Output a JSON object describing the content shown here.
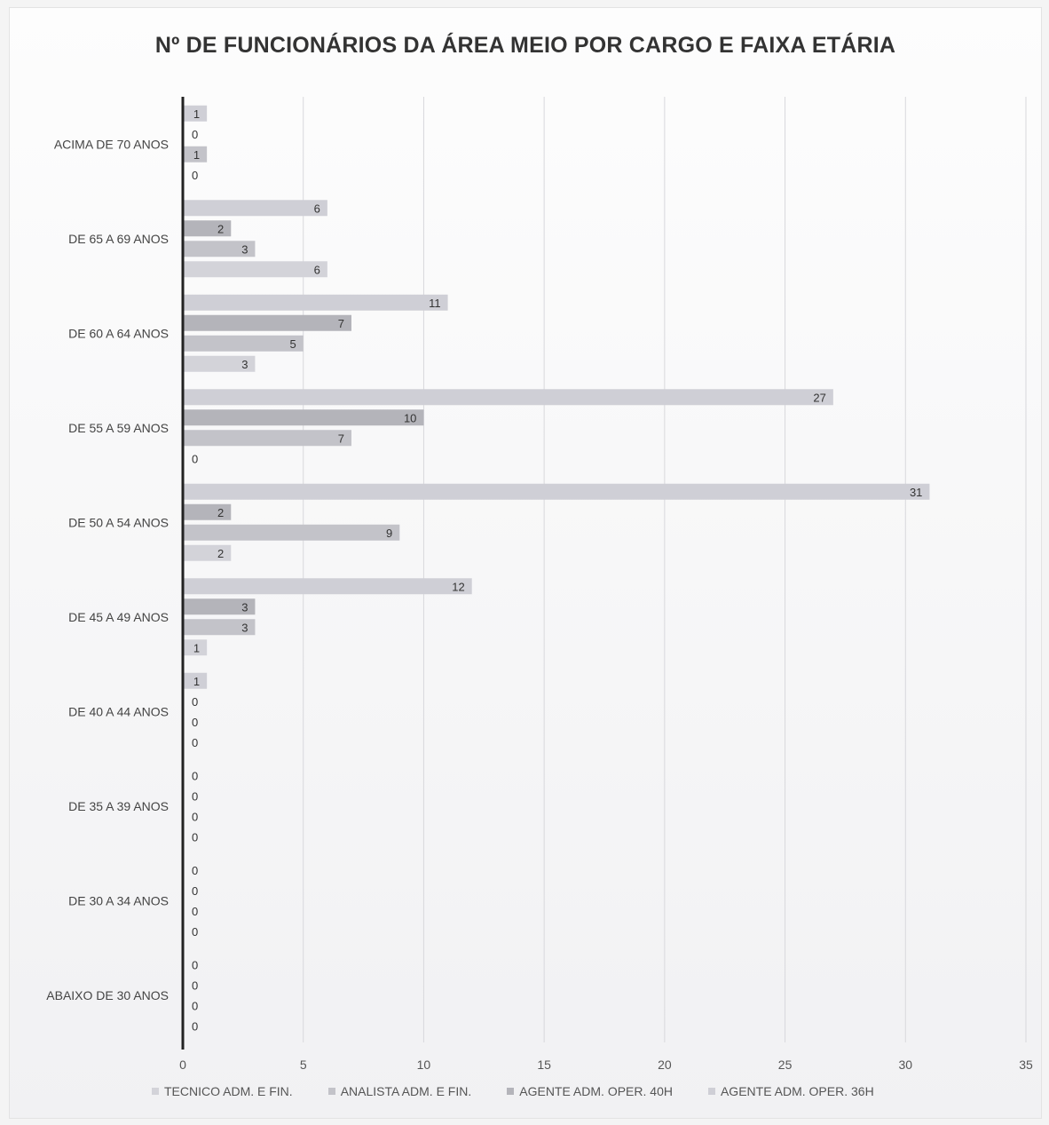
{
  "chart_data": {
    "type": "bar",
    "orientation": "horizontal",
    "title": "Nº DE FUNCIONÁRIOS DA ÁREA MEIO POR CARGO E FAIXA ETÁRIA",
    "categories": [
      "ACIMA DE 70 ANOS",
      "DE 65 A 69 ANOS",
      "DE 60 A 64 ANOS",
      "DE 55 A 59 ANOS",
      "DE 50 A 54 ANOS",
      "DE 45 A 49 ANOS",
      "DE 40 A 44 ANOS",
      "DE 35 A 39 ANOS",
      "DE 30 A 34 ANOS",
      "ABAIXO DE 30 ANOS"
    ],
    "series": [
      {
        "name": "AGENTE ADM. OPER. 36H",
        "color": "#cfcfd6",
        "values": [
          1,
          6,
          11,
          27,
          31,
          12,
          1,
          0,
          0,
          0
        ]
      },
      {
        "name": "AGENTE ADM. OPER. 40H",
        "color": "#b4b4ba",
        "values": [
          0,
          2,
          7,
          10,
          2,
          3,
          0,
          0,
          0,
          0
        ]
      },
      {
        "name": "ANALISTA ADM. E FIN.",
        "color": "#c3c3c9",
        "values": [
          1,
          3,
          5,
          7,
          9,
          3,
          0,
          0,
          0,
          0
        ]
      },
      {
        "name": "TECNICO ADM. E FIN.",
        "color": "#d3d3d9",
        "values": [
          0,
          6,
          3,
          0,
          2,
          1,
          0,
          0,
          0,
          0
        ]
      }
    ],
    "xlim": [
      0,
      35
    ],
    "xticks": [
      0,
      5,
      10,
      15,
      20,
      25,
      30,
      35
    ],
    "grid": true,
    "legend_position": "bottom",
    "legend_order": [
      "TECNICO ADM. E FIN.",
      "ANALISTA ADM. E FIN.",
      "AGENTE ADM. OPER. 40H",
      "AGENTE ADM. OPER. 36H"
    ]
  }
}
